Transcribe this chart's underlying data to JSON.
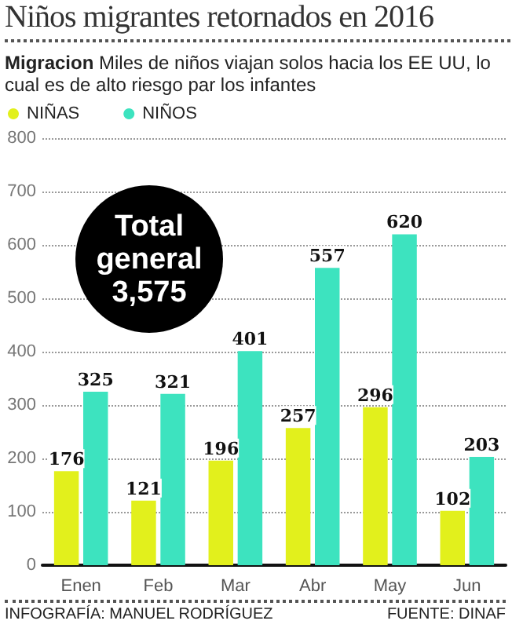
{
  "chart_data": {
    "type": "bar",
    "title": "Niños migrantes retornados en 2016",
    "subtitle": "Migracion Miles de niños viajan solos hacia los EE UU, lo cual es de alto riesgo par los infantes",
    "categories": [
      "Enen",
      "Feb",
      "Mar",
      "Abr",
      "May",
      "Jun"
    ],
    "series": [
      {
        "name": "NIÑAS",
        "color": "#e2f01c",
        "values": [
          176,
          121,
          196,
          257,
          296,
          102
        ]
      },
      {
        "name": "NIÑOS",
        "color": "#3de3bf",
        "values": [
          325,
          321,
          401,
          557,
          620,
          203
        ]
      }
    ],
    "ylim": [
      0,
      800
    ],
    "yticks": [
      0,
      100,
      200,
      300,
      400,
      500,
      600,
      700,
      800
    ],
    "grid": "y",
    "legend": "top left",
    "data_labels": true,
    "annotations": [
      "Total general 3,575",
      "INFOGRAFÍA: MANUEL RODRÍGUEZ",
      "FUENTE: DINAF"
    ]
  }
}
